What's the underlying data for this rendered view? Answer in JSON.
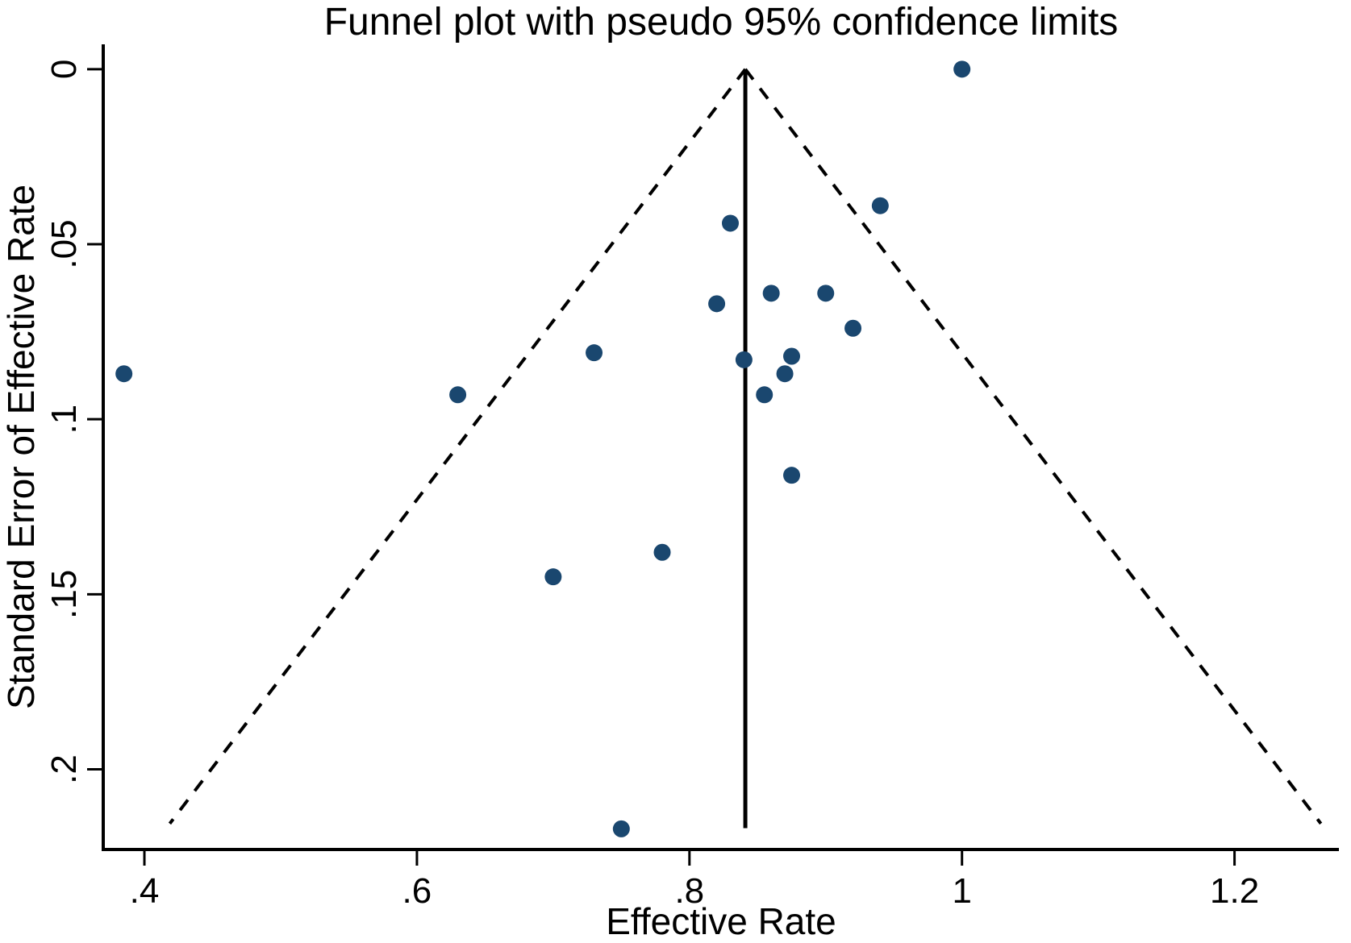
{
  "chart_data": {
    "type": "scatter",
    "title": "Funnel plot with pseudo 95% confidence limits",
    "xlabel": "Effective Rate",
    "ylabel": "Standard Error of Effective Rate",
    "grid": "off",
    "legend": "none",
    "x_axis": {
      "range": [
        0.3698,
        1.2766
      ],
      "ticks": [
        {
          "v": 0.4,
          "label": ".4"
        },
        {
          "v": 0.6,
          "label": ".6"
        },
        {
          "v": 0.8,
          "label": ".8"
        },
        {
          "v": 1.0,
          "label": "1"
        },
        {
          "v": 1.2,
          "label": "1.2"
        }
      ]
    },
    "y_axis": {
      "range": [
        -0.0071,
        0.2229
      ],
      "direction": "increases-downward",
      "ticks": [
        {
          "v": 0.0,
          "label": "0"
        },
        {
          "v": 0.05,
          "label": ".05"
        },
        {
          "v": 0.1,
          "label": ".1"
        },
        {
          "v": 0.15,
          "label": ".15"
        },
        {
          "v": 0.2,
          "label": ".2"
        }
      ]
    },
    "series": [
      {
        "name": "studies",
        "marker": "circle",
        "color": "#1a476f",
        "points": [
          [
            1.0,
            0.0
          ],
          [
            0.94,
            0.039
          ],
          [
            0.83,
            0.044
          ],
          [
            0.86,
            0.064
          ],
          [
            0.9,
            0.064
          ],
          [
            0.82,
            0.067
          ],
          [
            0.92,
            0.074
          ],
          [
            0.73,
            0.081
          ],
          [
            0.875,
            0.082
          ],
          [
            0.84,
            0.083
          ],
          [
            0.87,
            0.087
          ],
          [
            0.385,
            0.087
          ],
          [
            0.63,
            0.093
          ],
          [
            0.855,
            0.093
          ],
          [
            0.875,
            0.116
          ],
          [
            0.78,
            0.138
          ],
          [
            0.7,
            0.145
          ],
          [
            0.75,
            0.217
          ]
        ]
      }
    ],
    "funnel": {
      "center_estimate": 0.841,
      "ci_multiplier": 1.96,
      "limit_line_se_end": 0.2155,
      "center_line_se_end": 0.2168,
      "limit_line_style": "dashed",
      "center_line_style": "solid"
    },
    "colors": {
      "point": "#1a476f",
      "line": "#000000",
      "text": "#000000",
      "background": "#ffffff"
    }
  }
}
